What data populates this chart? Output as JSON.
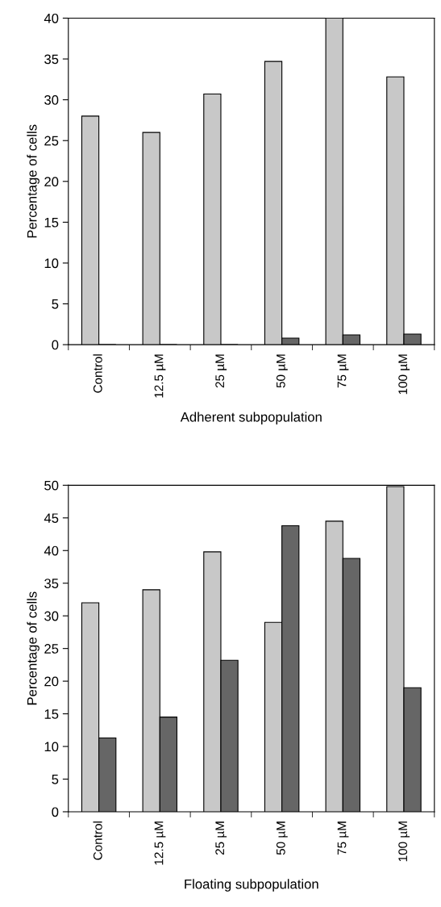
{
  "chart_data": [
    {
      "type": "bar",
      "categories": [
        "Control",
        "12.5 µM",
        "25 µM",
        "50 µM",
        "75 µM",
        "100 µM"
      ],
      "xlabel": "Adherent subpopulation",
      "ylabel": "Percentage of cells",
      "ylim": [
        0,
        40
      ],
      "yticks": [
        0,
        5,
        10,
        15,
        20,
        25,
        30,
        35,
        40
      ],
      "grid": false,
      "series": [
        {
          "color": "#c8c8c8",
          "values": [
            28,
            26,
            30.7,
            34.7,
            40,
            32.8
          ]
        },
        {
          "color": "#666666",
          "values": [
            0,
            0,
            0,
            0.8,
            1.2,
            1.3
          ]
        }
      ]
    },
    {
      "type": "bar",
      "categories": [
        "Control",
        "12.5 µM",
        "25 µM",
        "50 µM",
        "75 µM",
        "100 µM"
      ],
      "xlabel": "Floating subpopulation",
      "ylabel": "Percentage of cells",
      "ylim": [
        0,
        50
      ],
      "yticks": [
        0,
        5,
        10,
        15,
        20,
        25,
        30,
        35,
        40,
        45,
        50
      ],
      "grid": false,
      "series": [
        {
          "color": "#c8c8c8",
          "values": [
            32,
            34,
            39.8,
            29,
            44.5,
            49.8
          ]
        },
        {
          "color": "#666666",
          "values": [
            11.3,
            14.5,
            23.2,
            43.8,
            38.8,
            19
          ]
        }
      ]
    }
  ]
}
